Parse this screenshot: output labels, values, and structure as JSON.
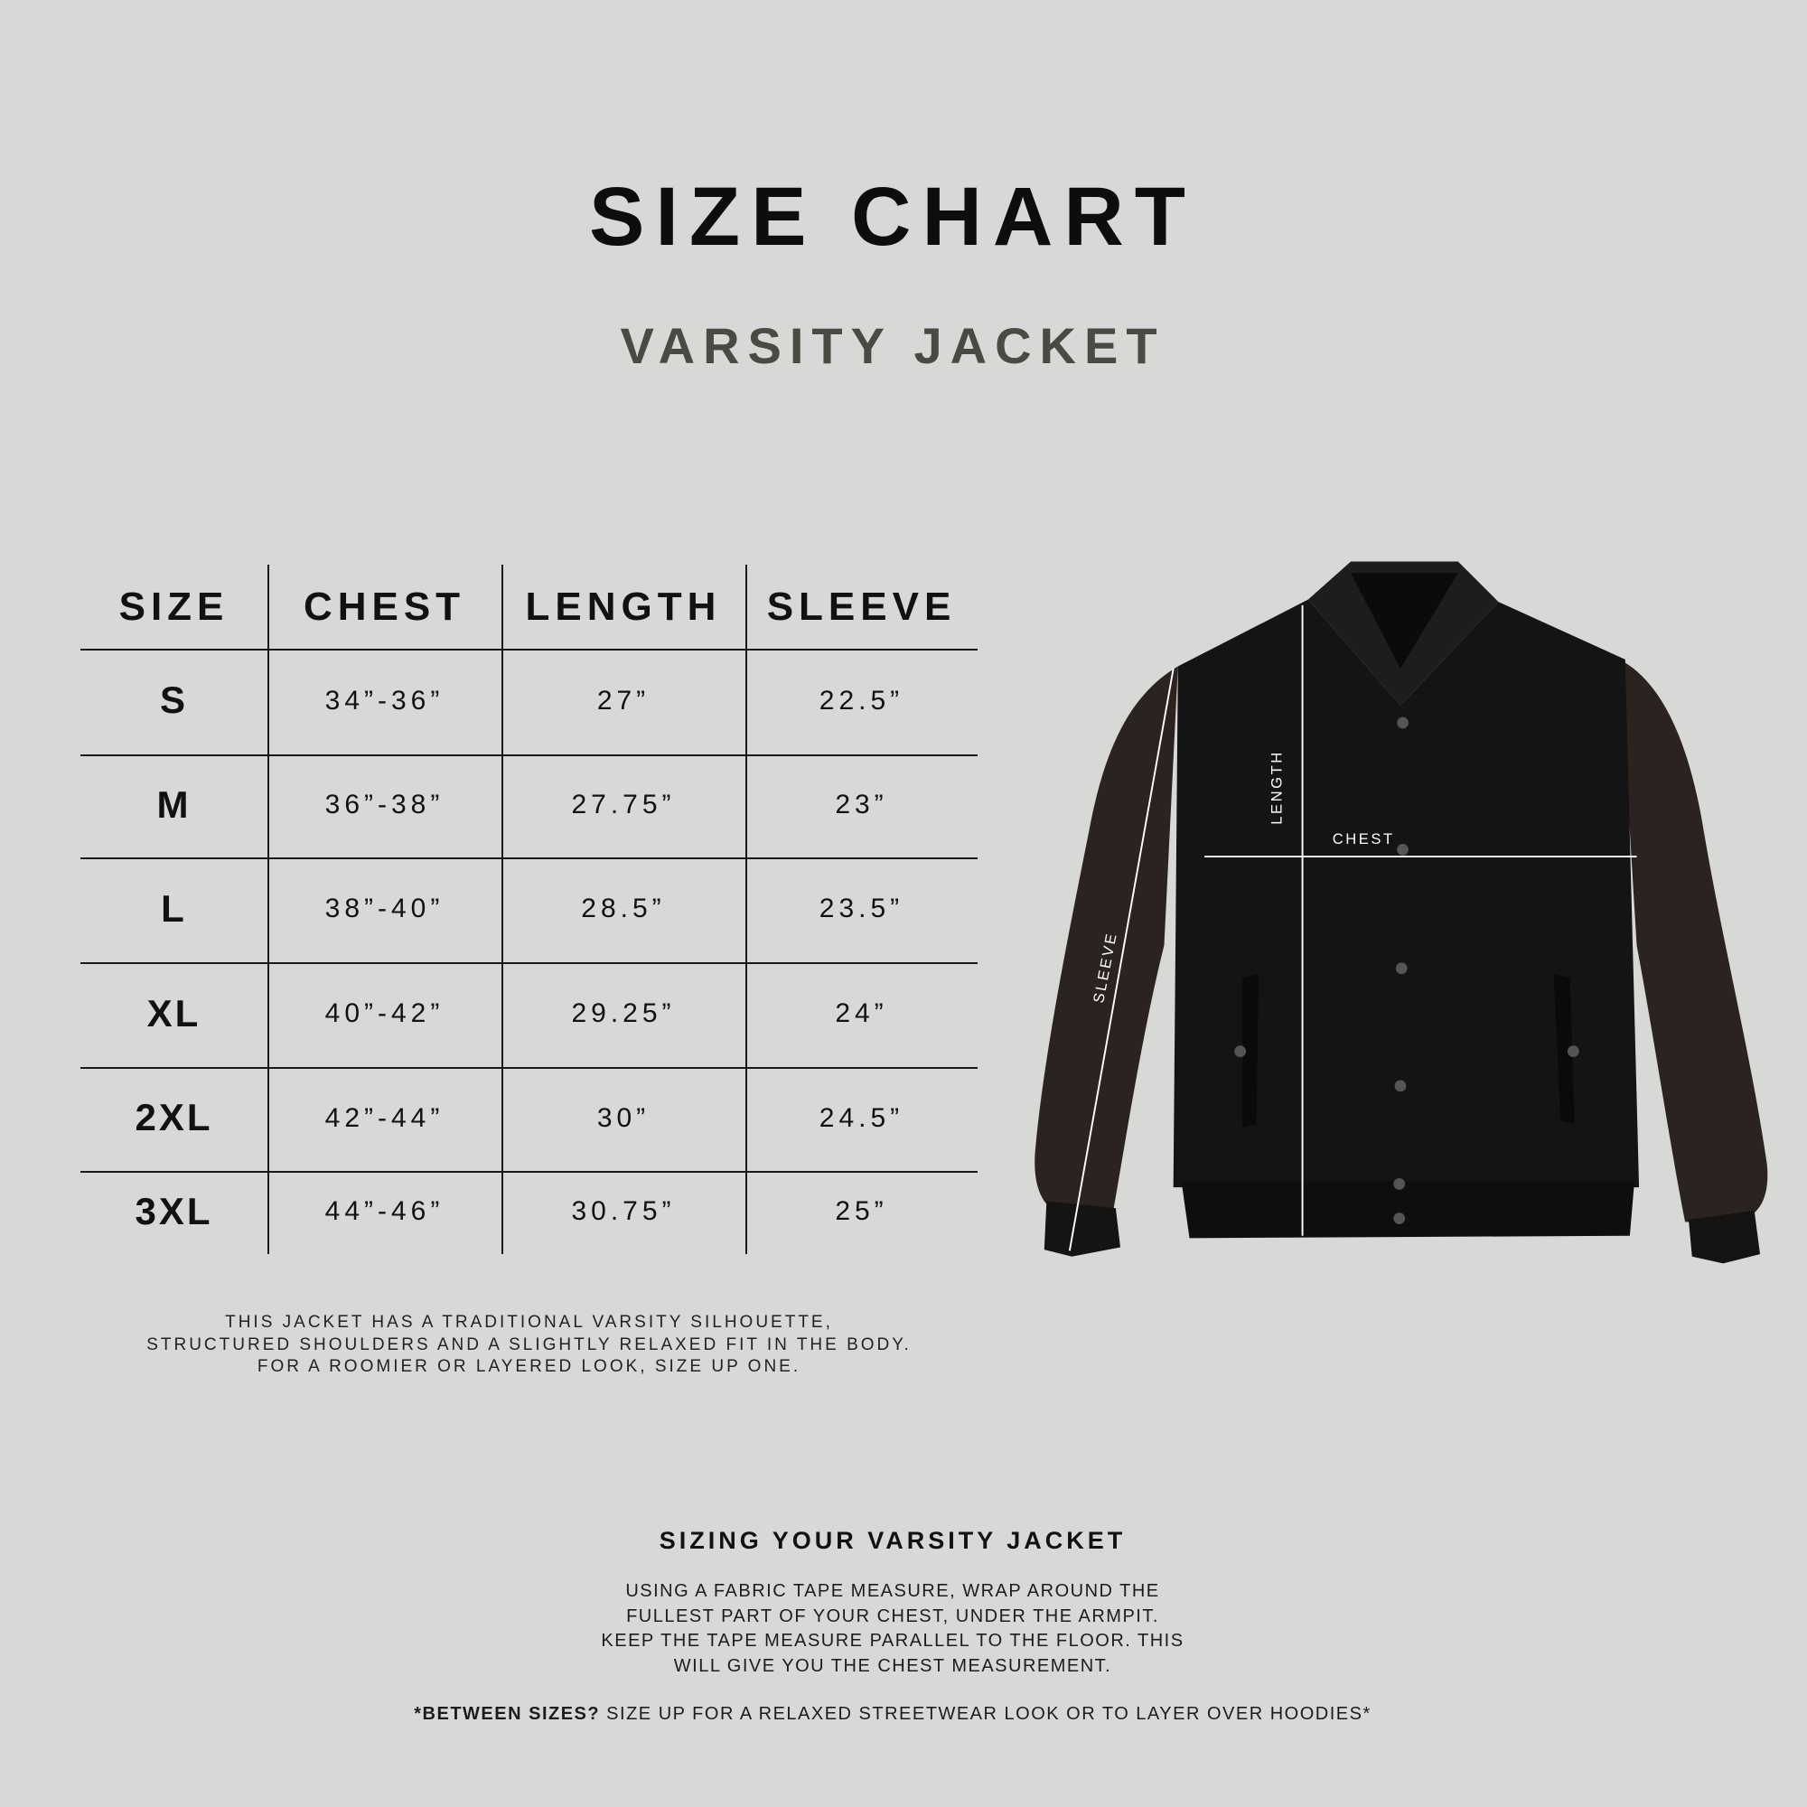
{
  "header": {
    "title": "SIZE CHART",
    "subtitle": "VARSITY JACKET"
  },
  "table": {
    "columns": [
      "SIZE",
      "CHEST",
      "LENGTH",
      "SLEEVE"
    ],
    "rows": [
      [
        "S",
        "34”-36”",
        "27”",
        "22.5”"
      ],
      [
        "M",
        "36”-38”",
        "27.75”",
        "23”"
      ],
      [
        "L",
        "38”-40”",
        "28.5”",
        "23.5”"
      ],
      [
        "XL",
        "40”-42”",
        "29.25”",
        "24”"
      ],
      [
        "2XL",
        "42”-44”",
        "30”",
        "24.5”"
      ],
      [
        "3XL",
        "44”-46”",
        "30.75”",
        "25”"
      ]
    ]
  },
  "fit_note": [
    "THIS JACKET HAS A TRADITIONAL VARSITY SILHOUETTE,",
    "STRUCTURED SHOULDERS AND A SLIGHTLY RELAXED FIT IN THE BODY.",
    "FOR A ROOMIER OR LAYERED LOOK, SIZE UP ONE."
  ],
  "diagram": {
    "length_label": "LENGTH",
    "chest_label": "CHEST",
    "sleeve_label": "SLEEVE"
  },
  "sizing": {
    "title": "SIZING YOUR VARSITY JACKET",
    "body": [
      "USING A FABRIC TAPE MEASURE, WRAP AROUND THE",
      "FULLEST PART OF YOUR CHEST, UNDER THE ARMPIT.",
      "KEEP THE TAPE MEASURE PARALLEL TO THE FLOOR. THIS",
      "WILL GIVE YOU THE CHEST MEASUREMENT."
    ],
    "between_bold": "*BETWEEN SIZES?",
    "between_rest": " SIZE UP FOR A RELAXED STREETWEAR LOOK OR TO LAYER OVER HOODIES*"
  },
  "colors": {
    "background": "#d8d8d7",
    "text": "#111111",
    "subtitle": "#4a4a43",
    "jacket_body": "#141414",
    "jacket_sleeve": "#2b2320"
  }
}
